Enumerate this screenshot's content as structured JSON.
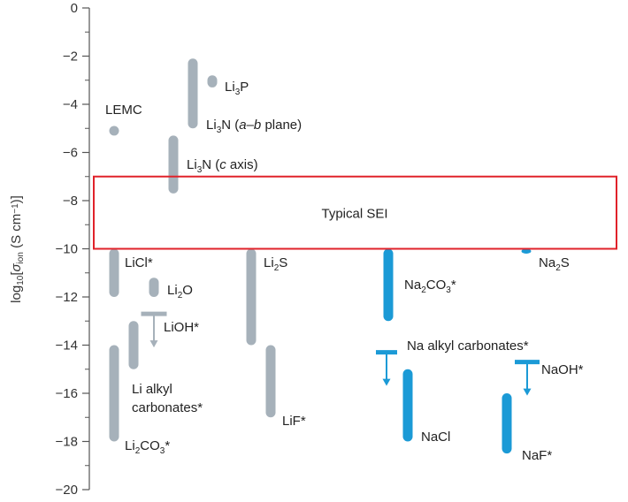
{
  "chart_data": {
    "type": "range-bar",
    "ylabel": "log10[σion (S cm−1)]",
    "ylabel_parts": {
      "prefix": "log",
      "prefix_sub": "10",
      "sigma": "σ",
      "sigma_sub": "ion",
      "unit": "(S cm",
      "exp": "−1",
      "close": ")]"
    },
    "ylim": [
      -20,
      0
    ],
    "yticks": [
      0,
      -2,
      -4,
      -6,
      -8,
      -10,
      -12,
      -14,
      -16,
      -18,
      -20
    ],
    "tick_labels": [
      "0",
      "−2",
      "−4",
      "−6",
      "−8",
      "−10",
      "−12",
      "−14",
      "−16",
      "−18",
      "−20"
    ],
    "minor_ticks": [
      -1,
      -3,
      -5,
      -7,
      -9,
      -11,
      -13,
      -15,
      -17,
      -19
    ],
    "colors": {
      "lithium": "#a6b1ba",
      "sodium": "#1b9ad6",
      "sei_box": "#e0222a",
      "axis": "#555555"
    },
    "sei_band": {
      "label": "Typical SEI",
      "range": [
        -10,
        -7
      ]
    },
    "ranges": [
      {
        "id": "lemc",
        "family": "lithium",
        "min": -5.3,
        "max": -4.9,
        "label": [
          "LEMC"
        ]
      },
      {
        "id": "li3p",
        "family": "lithium",
        "min": -3.3,
        "max": -2.8,
        "label": [
          "Li",
          {
            "sub": "3"
          },
          "P"
        ]
      },
      {
        "id": "li3n-ab",
        "family": "lithium",
        "min": -5.0,
        "max": -2.1,
        "label": [
          "Li",
          {
            "sub": "3"
          },
          "N (",
          {
            "it": "a–b"
          },
          " plane)"
        ]
      },
      {
        "id": "li3n-c",
        "family": "lithium",
        "min": -7.7,
        "max": -5.3,
        "label": [
          "Li",
          {
            "sub": "3"
          },
          "N (",
          {
            "it": "c"
          },
          " axis)"
        ]
      },
      {
        "id": "licl",
        "family": "lithium",
        "min": -12.0,
        "max": -10.0,
        "label": [
          "LiCl*"
        ]
      },
      {
        "id": "li2o",
        "family": "lithium",
        "min": -12.0,
        "max": -11.2,
        "label": [
          "Li",
          {
            "sub": "2"
          },
          "O"
        ]
      },
      {
        "id": "lioh",
        "family": "lithium",
        "upper_bound": -12.7,
        "label": [
          "LiOH*"
        ]
      },
      {
        "id": "li-alkyl-carbonates",
        "family": "lithium",
        "min": -15.0,
        "max": -13.0,
        "label": [
          "Li alkyl",
          "carbonates*"
        ]
      },
      {
        "id": "li2co3",
        "family": "lithium",
        "min": -18.0,
        "max": -14.0,
        "label": [
          "Li",
          {
            "sub": "2"
          },
          "CO",
          {
            "sub": "3"
          },
          "*"
        ]
      },
      {
        "id": "li2s",
        "family": "lithium",
        "min": -14.0,
        "max": -10.0,
        "label": [
          "Li",
          {
            "sub": "2"
          },
          "S"
        ]
      },
      {
        "id": "lif",
        "family": "lithium",
        "min": -17.0,
        "max": -14.0,
        "label": [
          "LiF*"
        ]
      },
      {
        "id": "na2co3",
        "family": "sodium",
        "min": -13.0,
        "max": -10.0,
        "label": [
          "Na",
          {
            "sub": "2"
          },
          "CO",
          {
            "sub": "3"
          },
          "*"
        ]
      },
      {
        "id": "na-alkyl-carbonates",
        "family": "sodium",
        "upper_bound": -14.3,
        "label": [
          "Na alkyl carbonates*"
        ]
      },
      {
        "id": "nacl",
        "family": "sodium",
        "min": -18.0,
        "max": -15.0,
        "label": [
          "NaCl"
        ]
      },
      {
        "id": "na2s",
        "family": "sodium",
        "min": -10.2,
        "max": -10.0,
        "label": [
          "Na",
          {
            "sub": "2"
          },
          "S"
        ]
      },
      {
        "id": "naoh",
        "family": "sodium",
        "upper_bound": -14.7,
        "label": [
          "NaOH*"
        ]
      },
      {
        "id": "naf",
        "family": "sodium",
        "min": -18.5,
        "max": -16.0,
        "label": [
          "NaF*"
        ]
      }
    ]
  }
}
